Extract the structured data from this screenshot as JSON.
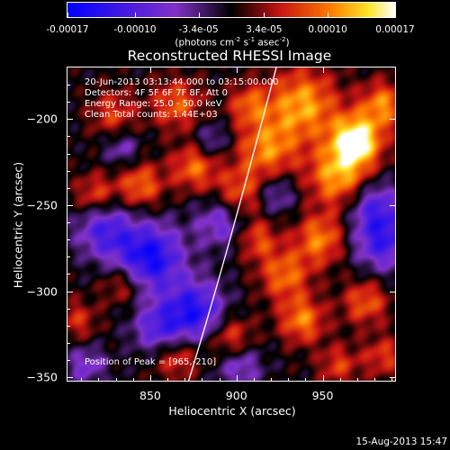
{
  "colorbar": {
    "ticks": [
      {
        "label": "-0.00017",
        "value": -0.00017
      },
      {
        "label": "-0.00010",
        "value": -0.0001
      },
      {
        "label": "-3.4e-05",
        "value": -3.4e-05
      },
      {
        "label": "3.4e-05",
        "value": 3.4e-05
      },
      {
        "label": "0.00010",
        "value": 0.0001
      },
      {
        "label": "0.00017",
        "value": 0.00017
      }
    ],
    "range": [
      -0.00017,
      0.00017
    ],
    "units_prefix": "(photons cm",
    "units_exp1": "-2",
    "units_mid": " s",
    "units_exp2": "-1",
    "units_mid2": " asec",
    "units_exp3": "-2",
    "units_suffix": ")"
  },
  "chart_data": {
    "type": "heatmap",
    "title": "Reconstructed RHESSI Image",
    "xlabel": "Heliocentric X (arcsec)",
    "ylabel": "Heliocentric Y (arcsec)",
    "xlim": [
      802,
      992
    ],
    "ylim": [
      -352,
      -170
    ],
    "xticks": [
      850,
      900,
      950
    ],
    "yticks": [
      -200,
      -250,
      -300,
      -350
    ],
    "annotations": [
      "20-Jun-2013 03:13:44.000 to 03:15:00.000",
      "Detectors: 4F 5F 6F 7F 8F, Att 0",
      "Energy Range: 25.0 - 50.0 keV",
      "Clean    Total counts: 1.44E+03"
    ],
    "peak_text": "Position of Peak = [965,-210]",
    "peak": [
      965,
      -210
    ],
    "solar_limb": "white curve from lower-left to upper-right",
    "colormap": "blue-purple-black-red-orange-yellow-white"
  },
  "timestamp": "15-Aug-2013 15:47"
}
